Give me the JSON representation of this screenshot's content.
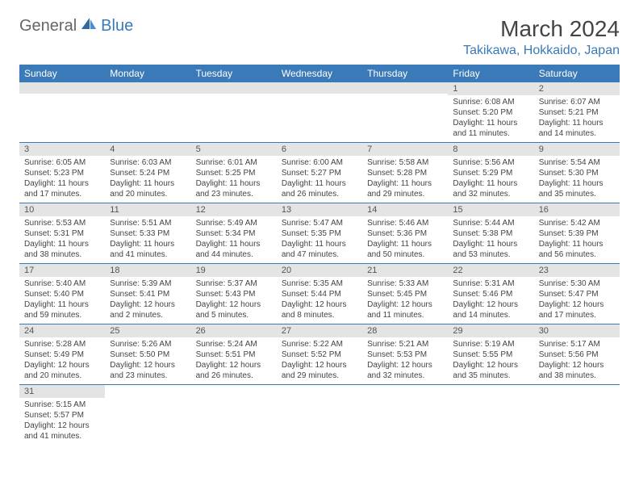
{
  "brand": {
    "part1": "General",
    "part2": "Blue"
  },
  "title": "March 2024",
  "location": "Takikawa, Hokkaido, Japan",
  "colors": {
    "header_bg": "#3a7ab8",
    "daynum_bg": "#e4e4e4",
    "text": "#444444",
    "brand_blue": "#3a7ab8"
  },
  "weekdays": [
    "Sunday",
    "Monday",
    "Tuesday",
    "Wednesday",
    "Thursday",
    "Friday",
    "Saturday"
  ],
  "weeks": [
    [
      null,
      null,
      null,
      null,
      null,
      {
        "n": "1",
        "sr": "Sunrise: 6:08 AM",
        "ss": "Sunset: 5:20 PM",
        "dl": "Daylight: 11 hours and 11 minutes."
      },
      {
        "n": "2",
        "sr": "Sunrise: 6:07 AM",
        "ss": "Sunset: 5:21 PM",
        "dl": "Daylight: 11 hours and 14 minutes."
      }
    ],
    [
      {
        "n": "3",
        "sr": "Sunrise: 6:05 AM",
        "ss": "Sunset: 5:23 PM",
        "dl": "Daylight: 11 hours and 17 minutes."
      },
      {
        "n": "4",
        "sr": "Sunrise: 6:03 AM",
        "ss": "Sunset: 5:24 PM",
        "dl": "Daylight: 11 hours and 20 minutes."
      },
      {
        "n": "5",
        "sr": "Sunrise: 6:01 AM",
        "ss": "Sunset: 5:25 PM",
        "dl": "Daylight: 11 hours and 23 minutes."
      },
      {
        "n": "6",
        "sr": "Sunrise: 6:00 AM",
        "ss": "Sunset: 5:27 PM",
        "dl": "Daylight: 11 hours and 26 minutes."
      },
      {
        "n": "7",
        "sr": "Sunrise: 5:58 AM",
        "ss": "Sunset: 5:28 PM",
        "dl": "Daylight: 11 hours and 29 minutes."
      },
      {
        "n": "8",
        "sr": "Sunrise: 5:56 AM",
        "ss": "Sunset: 5:29 PM",
        "dl": "Daylight: 11 hours and 32 minutes."
      },
      {
        "n": "9",
        "sr": "Sunrise: 5:54 AM",
        "ss": "Sunset: 5:30 PM",
        "dl": "Daylight: 11 hours and 35 minutes."
      }
    ],
    [
      {
        "n": "10",
        "sr": "Sunrise: 5:53 AM",
        "ss": "Sunset: 5:31 PM",
        "dl": "Daylight: 11 hours and 38 minutes."
      },
      {
        "n": "11",
        "sr": "Sunrise: 5:51 AM",
        "ss": "Sunset: 5:33 PM",
        "dl": "Daylight: 11 hours and 41 minutes."
      },
      {
        "n": "12",
        "sr": "Sunrise: 5:49 AM",
        "ss": "Sunset: 5:34 PM",
        "dl": "Daylight: 11 hours and 44 minutes."
      },
      {
        "n": "13",
        "sr": "Sunrise: 5:47 AM",
        "ss": "Sunset: 5:35 PM",
        "dl": "Daylight: 11 hours and 47 minutes."
      },
      {
        "n": "14",
        "sr": "Sunrise: 5:46 AM",
        "ss": "Sunset: 5:36 PM",
        "dl": "Daylight: 11 hours and 50 minutes."
      },
      {
        "n": "15",
        "sr": "Sunrise: 5:44 AM",
        "ss": "Sunset: 5:38 PM",
        "dl": "Daylight: 11 hours and 53 minutes."
      },
      {
        "n": "16",
        "sr": "Sunrise: 5:42 AM",
        "ss": "Sunset: 5:39 PM",
        "dl": "Daylight: 11 hours and 56 minutes."
      }
    ],
    [
      {
        "n": "17",
        "sr": "Sunrise: 5:40 AM",
        "ss": "Sunset: 5:40 PM",
        "dl": "Daylight: 11 hours and 59 minutes."
      },
      {
        "n": "18",
        "sr": "Sunrise: 5:39 AM",
        "ss": "Sunset: 5:41 PM",
        "dl": "Daylight: 12 hours and 2 minutes."
      },
      {
        "n": "19",
        "sr": "Sunrise: 5:37 AM",
        "ss": "Sunset: 5:43 PM",
        "dl": "Daylight: 12 hours and 5 minutes."
      },
      {
        "n": "20",
        "sr": "Sunrise: 5:35 AM",
        "ss": "Sunset: 5:44 PM",
        "dl": "Daylight: 12 hours and 8 minutes."
      },
      {
        "n": "21",
        "sr": "Sunrise: 5:33 AM",
        "ss": "Sunset: 5:45 PM",
        "dl": "Daylight: 12 hours and 11 minutes."
      },
      {
        "n": "22",
        "sr": "Sunrise: 5:31 AM",
        "ss": "Sunset: 5:46 PM",
        "dl": "Daylight: 12 hours and 14 minutes."
      },
      {
        "n": "23",
        "sr": "Sunrise: 5:30 AM",
        "ss": "Sunset: 5:47 PM",
        "dl": "Daylight: 12 hours and 17 minutes."
      }
    ],
    [
      {
        "n": "24",
        "sr": "Sunrise: 5:28 AM",
        "ss": "Sunset: 5:49 PM",
        "dl": "Daylight: 12 hours and 20 minutes."
      },
      {
        "n": "25",
        "sr": "Sunrise: 5:26 AM",
        "ss": "Sunset: 5:50 PM",
        "dl": "Daylight: 12 hours and 23 minutes."
      },
      {
        "n": "26",
        "sr": "Sunrise: 5:24 AM",
        "ss": "Sunset: 5:51 PM",
        "dl": "Daylight: 12 hours and 26 minutes."
      },
      {
        "n": "27",
        "sr": "Sunrise: 5:22 AM",
        "ss": "Sunset: 5:52 PM",
        "dl": "Daylight: 12 hours and 29 minutes."
      },
      {
        "n": "28",
        "sr": "Sunrise: 5:21 AM",
        "ss": "Sunset: 5:53 PM",
        "dl": "Daylight: 12 hours and 32 minutes."
      },
      {
        "n": "29",
        "sr": "Sunrise: 5:19 AM",
        "ss": "Sunset: 5:55 PM",
        "dl": "Daylight: 12 hours and 35 minutes."
      },
      {
        "n": "30",
        "sr": "Sunrise: 5:17 AM",
        "ss": "Sunset: 5:56 PM",
        "dl": "Daylight: 12 hours and 38 minutes."
      }
    ],
    [
      {
        "n": "31",
        "sr": "Sunrise: 5:15 AM",
        "ss": "Sunset: 5:57 PM",
        "dl": "Daylight: 12 hours and 41 minutes."
      },
      null,
      null,
      null,
      null,
      null,
      null
    ]
  ]
}
